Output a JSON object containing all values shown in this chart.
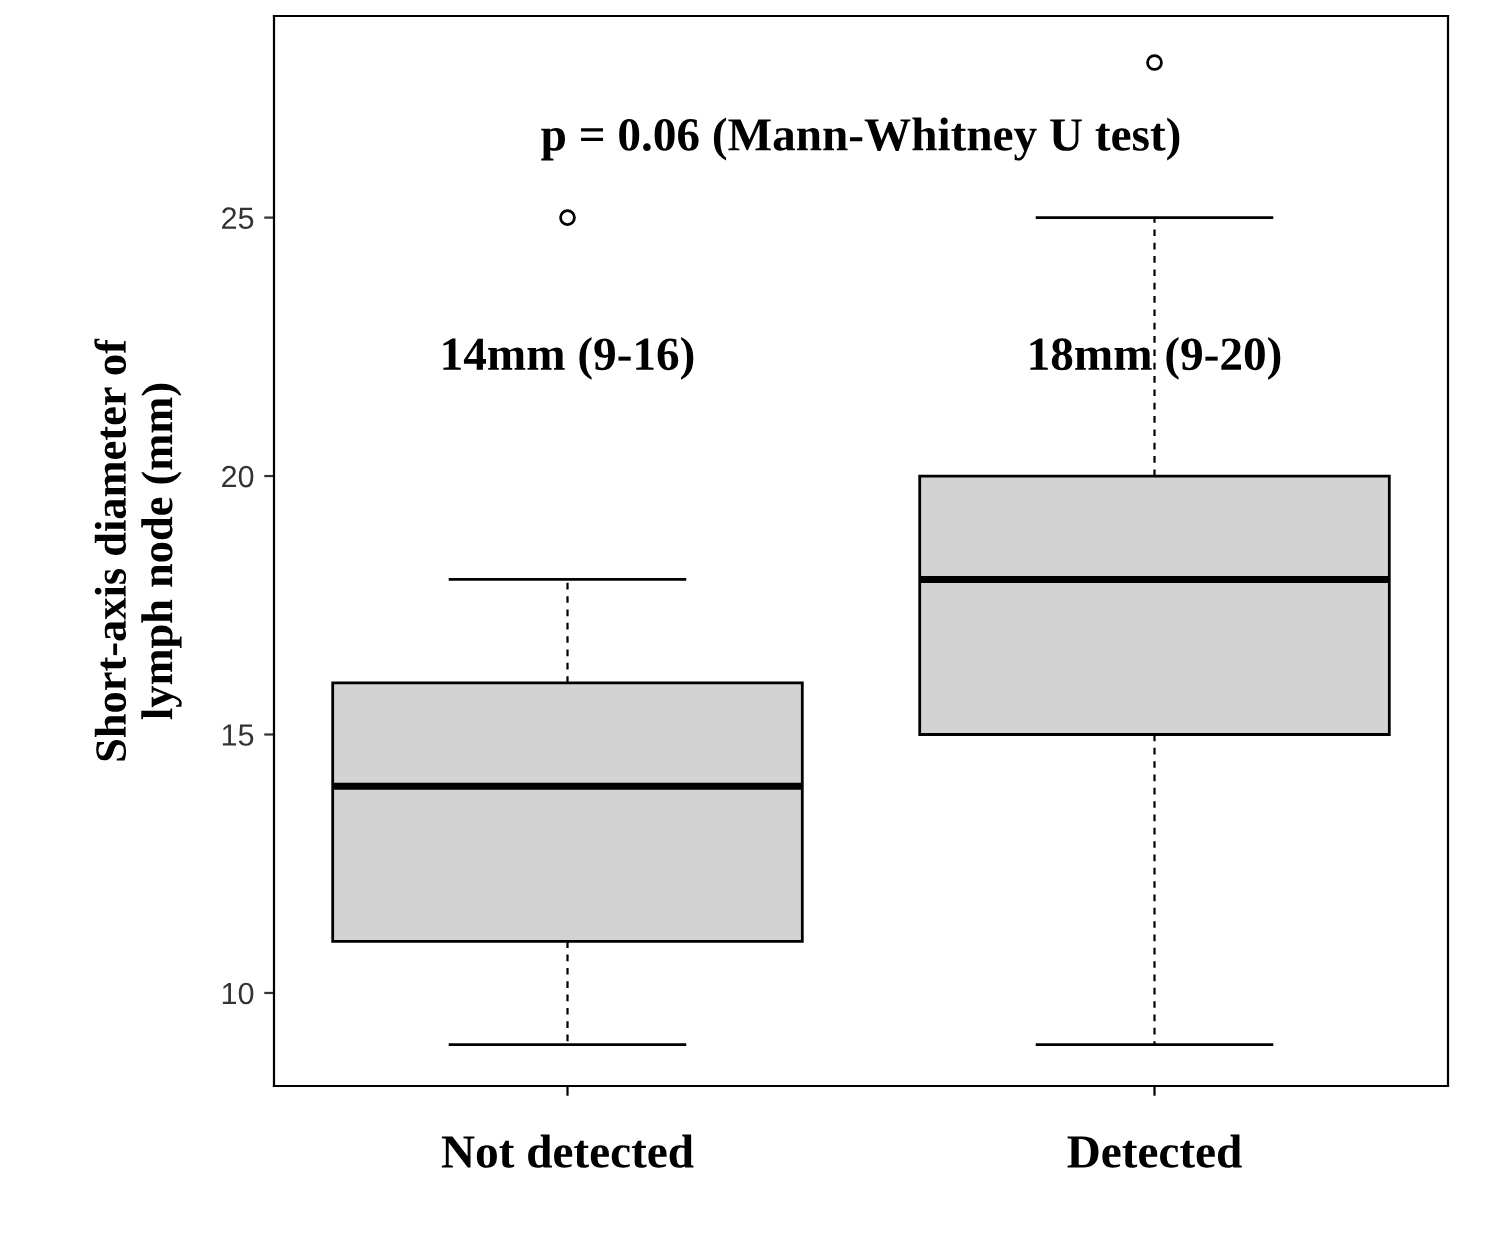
{
  "chart_data": {
    "type": "box",
    "ylabel": "Short-axis diameter of\nlymph node (mm)",
    "categories": [
      "Not detected",
      "Detected"
    ],
    "boxes": [
      {
        "low": 9,
        "q1": 11,
        "median": 14,
        "q3": 16,
        "high": 18,
        "outliers": [
          25
        ]
      },
      {
        "low": 9,
        "q1": 15,
        "median": 18,
        "q3": 20,
        "high": 25,
        "outliers": [
          28
        ]
      }
    ],
    "color": "#d3d3d3",
    "ylim": [
      8.2,
      28.9
    ],
    "yticks": [
      10,
      15,
      20,
      25
    ],
    "grid": false,
    "annotations": [
      "14mm (9-16)",
      "18mm (9-20)",
      "p = 0.06 (Mann-Whitney U test)"
    ]
  }
}
